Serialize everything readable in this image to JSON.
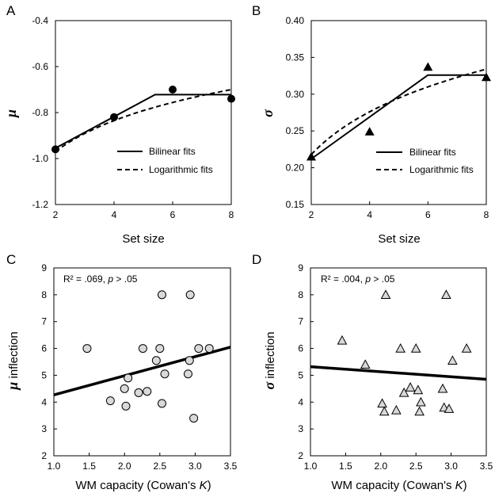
{
  "chart_data": [
    {
      "panel": "A",
      "type": "line",
      "xlabel": "Set size",
      "ylabel": "μ",
      "xlim": [
        2,
        8
      ],
      "ylim": [
        -1.2,
        -0.4
      ],
      "xticks": [
        "2",
        "4",
        "6",
        "8"
      ],
      "yticks": [
        "-1.2",
        "-1.0",
        "-0.8",
        "-0.6",
        "-0.4"
      ],
      "points": {
        "x": [
          2,
          4,
          6,
          8
        ],
        "y": [
          -0.96,
          -0.82,
          -0.7,
          -0.74
        ]
      },
      "fits": [
        {
          "name": "Bilinear fits",
          "style": "solid",
          "x": [
            2,
            5.4,
            8
          ],
          "y": [
            -0.955,
            -0.722,
            -0.722
          ]
        },
        {
          "name": "Logarithmic fits",
          "style": "dashed",
          "model": "log",
          "x": [
            2,
            8
          ],
          "y": [
            -0.97,
            -0.7
          ]
        }
      ],
      "legend": "bottom-right"
    },
    {
      "panel": "B",
      "type": "line",
      "xlabel": "Set size",
      "ylabel": "σ",
      "xlim": [
        2,
        8
      ],
      "ylim": [
        0.15,
        0.4
      ],
      "xticks": [
        "2",
        "4",
        "6",
        "8"
      ],
      "yticks": [
        "0.15",
        "0.20",
        "0.25",
        "0.30",
        "0.35",
        "0.40"
      ],
      "points": {
        "x": [
          2,
          4,
          6,
          8
        ],
        "y": [
          0.215,
          0.249,
          0.337,
          0.323
        ]
      },
      "fits": [
        {
          "name": "Bilinear fits",
          "style": "solid",
          "x": [
            2,
            6,
            8
          ],
          "y": [
            0.212,
            0.326,
            0.326
          ]
        },
        {
          "name": "Logarithmic fits",
          "style": "dashed",
          "model": "log",
          "x": [
            2,
            8
          ],
          "y": [
            0.218,
            0.334
          ]
        }
      ],
      "legend": "bottom-right"
    },
    {
      "panel": "C",
      "type": "scatter",
      "xlabel_pre": "WM capacity (Cowan's ",
      "xlabel_k": "K",
      "xlabel_post": ")",
      "ylabel": "μ",
      "ylabel_rest": " inflection",
      "xlim": [
        1.0,
        3.5
      ],
      "ylim": [
        2,
        9
      ],
      "xticks": [
        "1.0",
        "1.5",
        "2.0",
        "2.5",
        "3.0",
        "3.5"
      ],
      "yticks": [
        "2",
        "3",
        "4",
        "5",
        "6",
        "7",
        "8",
        "9"
      ],
      "annotation": {
        "pre": "R² = .069, ",
        "p": "p",
        "post": " > .05"
      },
      "points": {
        "x": [
          1.47,
          1.8,
          2.0,
          2.02,
          2.05,
          2.2,
          2.26,
          2.32,
          2.45,
          2.5,
          2.53,
          2.53,
          2.57,
          2.9,
          2.92,
          2.93,
          2.98,
          3.05,
          3.2
        ],
        "y": [
          6.0,
          4.05,
          4.5,
          3.85,
          4.9,
          4.35,
          6.0,
          4.4,
          5.55,
          6.0,
          8.0,
          3.95,
          5.05,
          5.05,
          5.55,
          8.0,
          3.4,
          6.0,
          6.0
        ]
      },
      "fit": {
        "x": [
          1.0,
          3.5
        ],
        "y": [
          4.27,
          6.05
        ]
      }
    },
    {
      "panel": "D",
      "type": "scatter",
      "xlabel_pre": "WM capacity (Cowan's ",
      "xlabel_k": "K",
      "xlabel_post": ")",
      "ylabel": "σ",
      "ylabel_rest": " inflection",
      "xlim": [
        1.0,
        3.5
      ],
      "ylim": [
        2,
        9
      ],
      "xticks": [
        "1.0",
        "1.5",
        "2.0",
        "2.5",
        "3.0",
        "3.5"
      ],
      "yticks": [
        "2",
        "3",
        "4",
        "5",
        "6",
        "7",
        "8",
        "9"
      ],
      "annotation": {
        "pre": "R² = .004, ",
        "p": "p",
        "post": " > .05"
      },
      "points": {
        "x": [
          1.45,
          1.78,
          2.02,
          2.05,
          2.07,
          2.22,
          2.28,
          2.33,
          2.42,
          2.5,
          2.53,
          2.55,
          2.57,
          2.88,
          2.9,
          2.93,
          2.97,
          3.02,
          3.22
        ],
        "y": [
          6.3,
          5.4,
          3.95,
          3.65,
          8.0,
          3.7,
          6.0,
          4.35,
          4.55,
          6.0,
          4.45,
          3.65,
          4.0,
          4.5,
          3.8,
          8.0,
          3.75,
          5.55,
          6.0
        ]
      },
      "fit": {
        "x": [
          1.0,
          3.5
        ],
        "y": [
          5.32,
          4.85
        ]
      }
    }
  ]
}
